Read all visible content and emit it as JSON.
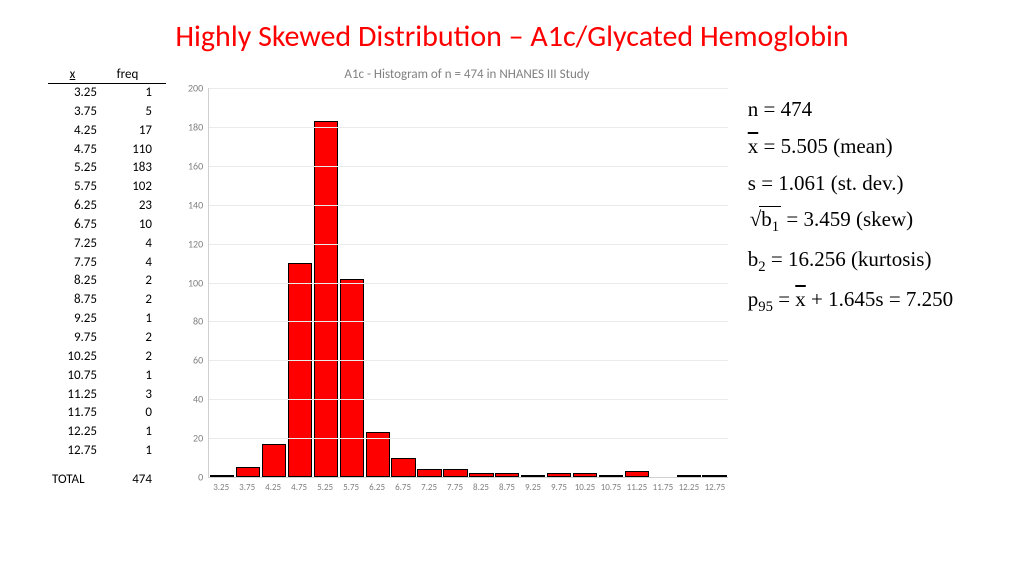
{
  "title": {
    "text": "Highly Skewed Distribution – A1c/Glycated Hemoglobin",
    "color": "#ff0000",
    "fontsize": 30
  },
  "freq_table": {
    "header_x": "x",
    "header_f": "freq",
    "rows": [
      {
        "x": "3.25",
        "f": "1"
      },
      {
        "x": "3.75",
        "f": "5"
      },
      {
        "x": "4.25",
        "f": "17"
      },
      {
        "x": "4.75",
        "f": "110"
      },
      {
        "x": "5.25",
        "f": "183"
      },
      {
        "x": "5.75",
        "f": "102"
      },
      {
        "x": "6.25",
        "f": "23"
      },
      {
        "x": "6.75",
        "f": "10"
      },
      {
        "x": "7.25",
        "f": "4"
      },
      {
        "x": "7.75",
        "f": "4"
      },
      {
        "x": "8.25",
        "f": "2"
      },
      {
        "x": "8.75",
        "f": "2"
      },
      {
        "x": "9.25",
        "f": "1"
      },
      {
        "x": "9.75",
        "f": "2"
      },
      {
        "x": "10.25",
        "f": "2"
      },
      {
        "x": "10.75",
        "f": "1"
      },
      {
        "x": "11.25",
        "f": "3"
      },
      {
        "x": "11.75",
        "f": "0"
      },
      {
        "x": "12.25",
        "f": "1"
      },
      {
        "x": "12.75",
        "f": "1"
      }
    ],
    "total_label": "TOTAL",
    "total_value": "474"
  },
  "chart": {
    "type": "histogram",
    "title": "A1c - Histogram of  n = 474 in NHANES III Study",
    "title_color": "#808080",
    "title_fontsize": 13,
    "categories": [
      "3.25",
      "3.75",
      "4.25",
      "4.75",
      "5.25",
      "5.75",
      "6.25",
      "6.75",
      "7.25",
      "7.75",
      "8.25",
      "8.75",
      "9.25",
      "9.75",
      "10.25",
      "10.75",
      "11.25",
      "11.75",
      "12.25",
      "12.75"
    ],
    "values": [
      1,
      5,
      17,
      110,
      183,
      102,
      23,
      10,
      4,
      4,
      2,
      2,
      1,
      2,
      2,
      1,
      3,
      0,
      1,
      1
    ],
    "bar_fill": "#ff0000",
    "bar_border": "#000000",
    "ylim": [
      0,
      200
    ],
    "ytick_step": 20,
    "yticks": [
      "0",
      "20",
      "40",
      "60",
      "80",
      "100",
      "120",
      "140",
      "160",
      "180",
      "200"
    ],
    "grid_color": "#eaeaea",
    "axis_color": "#d0d0d0",
    "tick_color": "#808080",
    "tick_fontsize": 10,
    "background_color": "#ffffff",
    "bar_width": 0.94
  },
  "stats": {
    "n_label": "n",
    "n_value": "474",
    "xbar_label": "x",
    "xbar_value": "5.505",
    "xbar_desc": "(mean)",
    "s_label": "s",
    "s_value": "1.061",
    "s_desc": "(st. dev.)",
    "skew_sym": "b",
    "skew_sub": "1",
    "skew_value": "3.459",
    "skew_desc": "(skew)",
    "kurt_sym": "b",
    "kurt_sub": "2",
    "kurt_value": "16.256",
    "kurt_desc": "(kurtosis)",
    "p95_label": "p",
    "p95_sub": "95",
    "p95_mid": "1.645s",
    "p95_value": "7.250",
    "eq": "=",
    "plus": "+",
    "fontsize": 21,
    "color": "#000000"
  }
}
